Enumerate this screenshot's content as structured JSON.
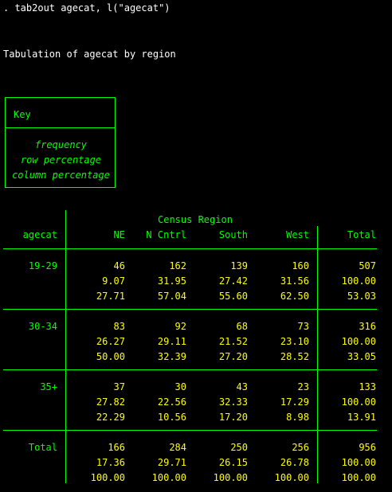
{
  "command": ". tab2out agecat, l(\"agecat\")",
  "heading": "Tabulation of agecat by region",
  "key": {
    "title": "Key",
    "lines": [
      "frequency",
      "row percentage",
      "column percentage"
    ]
  },
  "table": {
    "super_header": "Census Region",
    "row_var": "agecat",
    "columns": [
      "NE",
      "N Cntrl",
      "South",
      "West",
      "Total"
    ],
    "rows": [
      {
        "label": "19-29",
        "values": [
          [
            "46",
            "162",
            "139",
            "160",
            "507"
          ],
          [
            "9.07",
            "31.95",
            "27.42",
            "31.56",
            "100.00"
          ],
          [
            "27.71",
            "57.04",
            "55.60",
            "62.50",
            "53.03"
          ]
        ]
      },
      {
        "label": "30-34",
        "values": [
          [
            "83",
            "92",
            "68",
            "73",
            "316"
          ],
          [
            "26.27",
            "29.11",
            "21.52",
            "23.10",
            "100.00"
          ],
          [
            "50.00",
            "32.39",
            "27.20",
            "28.52",
            "33.05"
          ]
        ]
      },
      {
        "label": "35+",
        "values": [
          [
            "37",
            "30",
            "43",
            "23",
            "133"
          ],
          [
            "27.82",
            "22.56",
            "32.33",
            "17.29",
            "100.00"
          ],
          [
            "22.29",
            "10.56",
            "17.20",
            "8.98",
            "13.91"
          ]
        ]
      },
      {
        "label": "Total",
        "values": [
          [
            "166",
            "284",
            "250",
            "256",
            "956"
          ],
          [
            "17.36",
            "29.71",
            "26.15",
            "26.78",
            "100.00"
          ],
          [
            "100.00",
            "100.00",
            "100.00",
            "100.00",
            "100.00"
          ]
        ]
      }
    ]
  },
  "colors": {
    "background": "#000000",
    "command": "#ffffff",
    "labels": "#00ff00",
    "values": "#ffff00"
  }
}
